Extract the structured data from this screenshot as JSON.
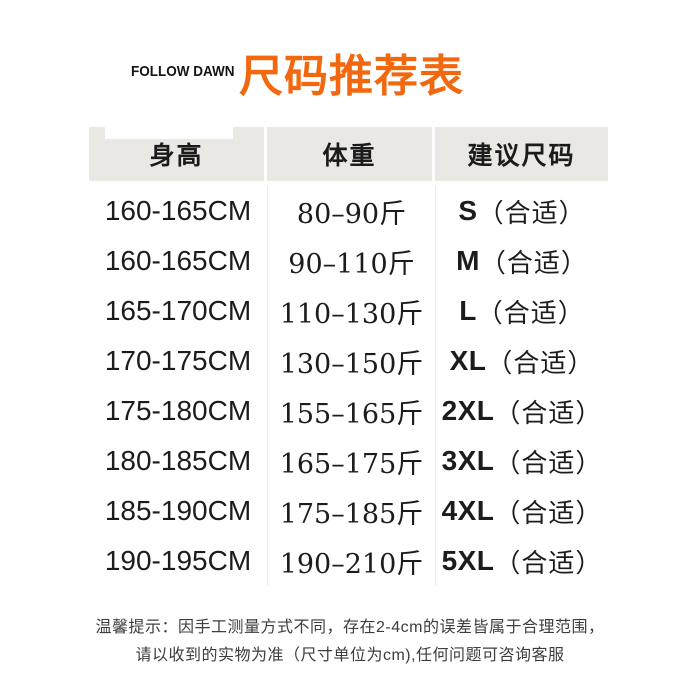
{
  "colors": {
    "background": "#ffffff",
    "title_orange": "#f2680e",
    "header_gray": "#e9e8e5",
    "body_text": "#1c1c1c",
    "note_text": "#3d3d3d"
  },
  "brand": {
    "label": "FOLLOW DAWN"
  },
  "header": {
    "title": "尺码推荐表"
  },
  "size_table": {
    "columns": [
      "身高",
      "体重",
      "建议尺码"
    ],
    "rows": [
      {
        "height": "160-165CM",
        "weight": "80–90斤",
        "size_code": "S",
        "fit": "（合适）"
      },
      {
        "height": "160-165CM",
        "weight": "90–110斤",
        "size_code": "M",
        "fit": "（合适）"
      },
      {
        "height": "165-170CM",
        "weight": "110–130斤",
        "size_code": "L",
        "fit": "（合适）"
      },
      {
        "height": "170-175CM",
        "weight": "130–150斤",
        "size_code": "XL",
        "fit": "（合适）"
      },
      {
        "height": "175-180CM",
        "weight": "155–165斤",
        "size_code": "2XL",
        "fit": "（合适）"
      },
      {
        "height": "180-185CM",
        "weight": "165–175斤",
        "size_code": "3XL",
        "fit": "（合适）"
      },
      {
        "height": "185-190CM",
        "weight": "175–185斤",
        "size_code": "4XL",
        "fit": "（合适）"
      },
      {
        "height": "190-195CM",
        "weight": "190–210斤",
        "size_code": "5XL",
        "fit": "（合适）"
      }
    ]
  },
  "footer_note": {
    "line1": "温馨提示：因手工测量方式不同，存在2-4cm的误差皆属于合理范围，",
    "line2": "请以收到的实物为准（尺寸单位为cm),任何问题可咨询客服"
  }
}
